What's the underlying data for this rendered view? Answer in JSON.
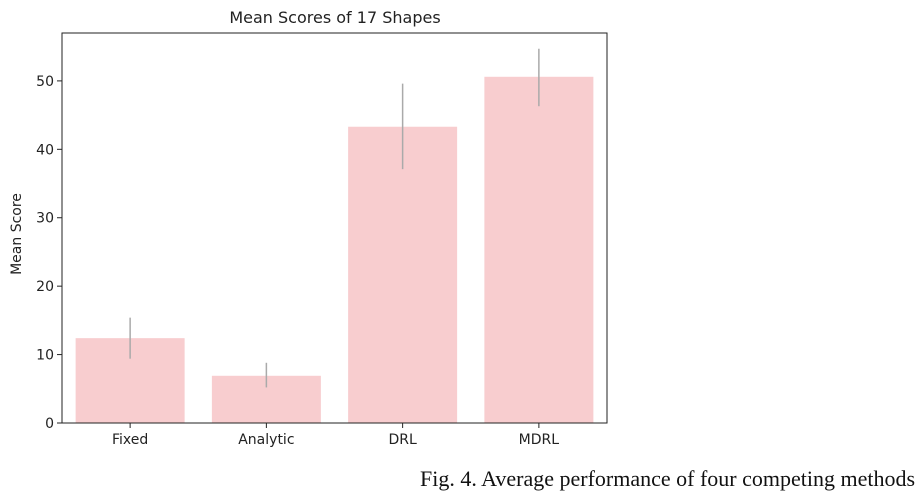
{
  "chart_data": {
    "type": "bar",
    "title": "Mean Scores of 17 Shapes",
    "xlabel": "",
    "ylabel": "Mean Score",
    "categories": [
      "Fixed",
      "Analytic",
      "DRL",
      "MDRL"
    ],
    "values": [
      12.4,
      6.9,
      43.3,
      50.6
    ],
    "error_low": [
      9.4,
      5.2,
      37.1,
      46.3
    ],
    "error_high": [
      15.4,
      8.8,
      49.6,
      54.7
    ],
    "ylim": [
      0,
      57
    ],
    "yticks": [
      0,
      10,
      20,
      30,
      40,
      50
    ],
    "bar_color": "#f8cdcf",
    "error_color": "#aaaaaa",
    "grid": false
  },
  "caption": "Fig. 4. Average performance of four competing methods"
}
